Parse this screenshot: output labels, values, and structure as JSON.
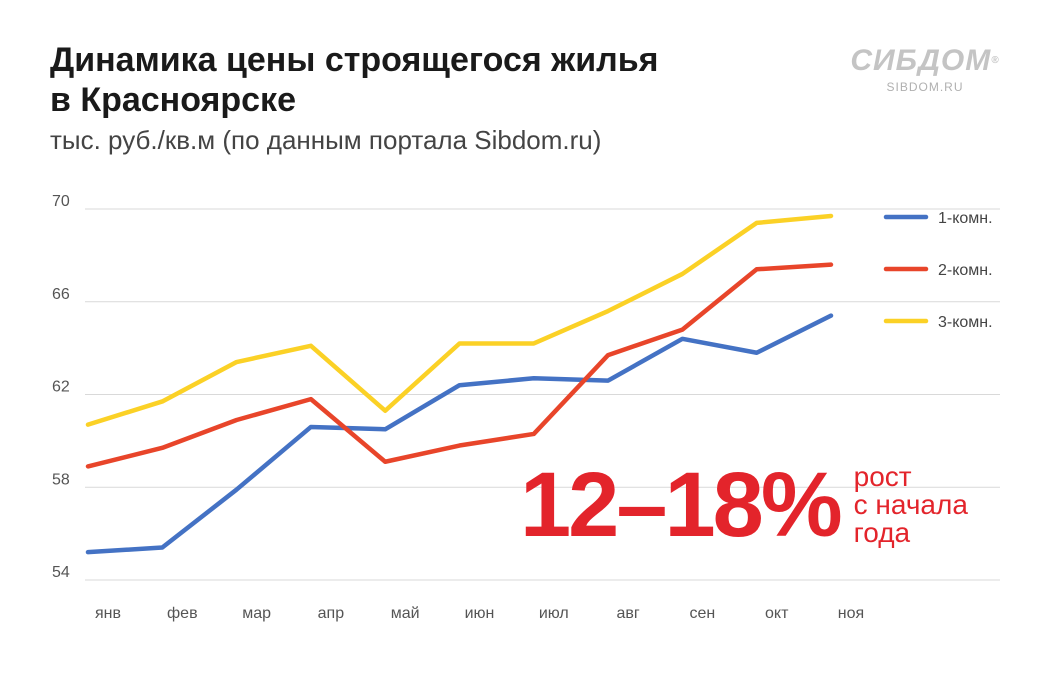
{
  "header": {
    "title_line1": "Динамика цены строящегося жилья",
    "title_line2": "в Красноярске",
    "subtitle": "тыс. руб./кв.м (по данным портала Sibdom.ru)"
  },
  "logo": {
    "name": "СИБДОМ",
    "reg": "®",
    "site": "SIBDOM.RU",
    "color": "#c4c4c4"
  },
  "highlight": {
    "value": "12–18%",
    "note_line1": "рост",
    "note_line2": "с начала",
    "note_line3": "года",
    "color": "#e3242b"
  },
  "chart_data": {
    "type": "line",
    "categories": [
      "янв",
      "фев",
      "мар",
      "апр",
      "май",
      "июн",
      "июл",
      "авг",
      "сен",
      "окт",
      "ноя"
    ],
    "series": [
      {
        "name": "1-комн.",
        "color": "#4472c4",
        "values": [
          55.2,
          55.4,
          57.9,
          60.6,
          60.5,
          62.4,
          62.7,
          62.6,
          64.4,
          63.8,
          65.4
        ]
      },
      {
        "name": "2-комн.",
        "color": "#e8452a",
        "values": [
          58.9,
          59.7,
          60.9,
          61.8,
          59.1,
          59.8,
          60.3,
          63.7,
          64.8,
          67.4,
          67.6
        ]
      },
      {
        "name": "3-комн.",
        "color": "#fbd126",
        "values": [
          60.7,
          61.7,
          63.4,
          64.1,
          61.3,
          64.2,
          64.2,
          65.6,
          67.2,
          69.4,
          69.7
        ]
      }
    ],
    "yticks": [
      "70",
      "66",
      "62",
      "58",
      "54"
    ],
    "ylim": [
      54,
      70
    ],
    "grid": true,
    "legend": "right"
  }
}
